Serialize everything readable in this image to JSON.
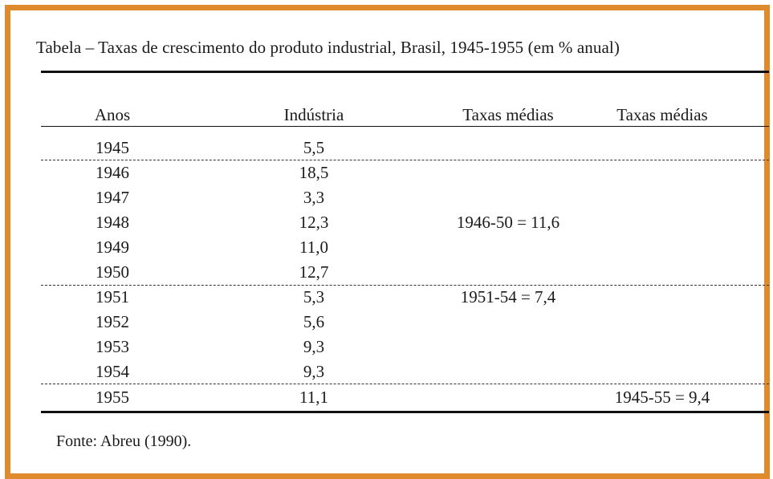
{
  "table": {
    "caption": "Tabela  –  Taxas de crescimento do produto industrial, Brasil, 1945-1955 (em % anual)",
    "headers": [
      "Anos",
      "Indústria",
      "Taxas médias",
      "Taxas médias"
    ],
    "rows": [
      {
        "year": "1945",
        "value": "5,5"
      },
      {
        "year": "1946",
        "value": "18,5"
      },
      {
        "year": "1947",
        "value": "3,3"
      },
      {
        "year": "1948",
        "value": "12,3"
      },
      {
        "year": "1949",
        "value": "11,0"
      },
      {
        "year": "1950",
        "value": "12,7"
      },
      {
        "year": "1951",
        "value": "5,3"
      },
      {
        "year": "1952",
        "value": "5,6"
      },
      {
        "year": "1953",
        "value": "9,3"
      },
      {
        "year": "1954",
        "value": "9,3"
      },
      {
        "year": "1955",
        "value": "11,1"
      }
    ],
    "averages": {
      "period_1946_50": "1946-50 = 11,6",
      "period_1951_54": "1951-54 = 7,4",
      "period_1945_55": "1945-55 = 9,4"
    },
    "source": "Fonte: Abreu (1990)."
  },
  "colors": {
    "frame": "#e08a2e"
  }
}
